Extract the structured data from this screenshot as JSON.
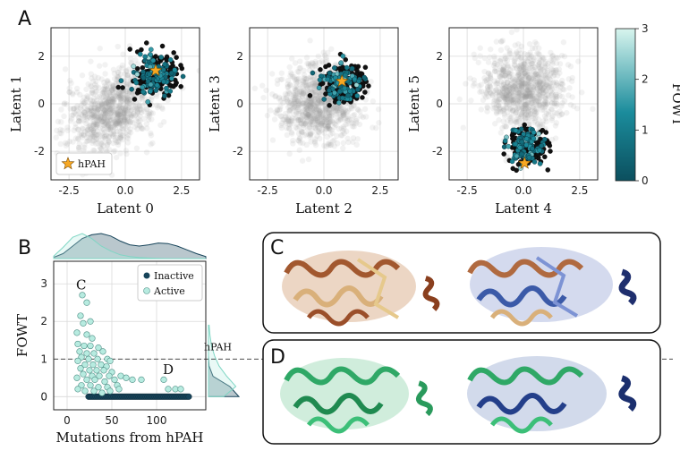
{
  "panel_labels": {
    "A": "A",
    "B": "B",
    "C": "C",
    "D": "D"
  },
  "colors": {
    "cmap_low": "#0b4f5e",
    "cmap_mid": "#1b8c9c",
    "cmap_high": "#cff2ea",
    "background_points": "#9a9a9a",
    "inactive": "#17445a",
    "active": "#b7ebe0",
    "star": "#f7a823",
    "structure_c_left": "#b06a40",
    "structure_c_right": "#3b5aa8",
    "structure_d_left": "#2fa866",
    "structure_d_right": "#243f8a"
  },
  "chart_data": [
    {
      "type": "scatter",
      "id": "latent-0-1",
      "xlabel": "Latent 0",
      "ylabel": "Latent 1",
      "xlim": [
        -3.3,
        3.3
      ],
      "ylim": [
        -3.2,
        3.2
      ],
      "xticks": [
        "-2.5",
        "0.0",
        "2.5"
      ],
      "xtick_values": [
        -2.5,
        0,
        2.5
      ],
      "yticks": [
        "-2",
        "0",
        "2"
      ],
      "ytick_values": [
        -2,
        0,
        2
      ],
      "background_center": [
        -0.6,
        -0.3
      ],
      "background_spread": [
        1.0,
        0.85
      ],
      "cluster_center": [
        1.3,
        1.2
      ],
      "cluster_spread": [
        0.55,
        0.45
      ],
      "star": [
        1.35,
        1.4
      ],
      "legend": "hPAH"
    },
    {
      "type": "scatter",
      "id": "latent-2-3",
      "xlabel": "Latent 2",
      "ylabel": "Latent 3",
      "xlim": [
        -3.3,
        3.3
      ],
      "ylim": [
        -3.2,
        3.2
      ],
      "xticks": [
        "-2.5",
        "0.0",
        "2.5"
      ],
      "xtick_values": [
        -2.5,
        0,
        2.5
      ],
      "yticks": [
        "-2",
        "0",
        "2"
      ],
      "ytick_values": [
        -2,
        0,
        2
      ],
      "background_center": [
        -0.2,
        0.0
      ],
      "background_spread": [
        0.9,
        0.8
      ],
      "cluster_center": [
        0.75,
        0.85
      ],
      "cluster_spread": [
        0.5,
        0.45
      ],
      "star": [
        0.8,
        0.95
      ]
    },
    {
      "type": "scatter",
      "id": "latent-4-5",
      "xlabel": "Latent 4",
      "ylabel": "Latent 5",
      "xlim": [
        -3.3,
        3.3
      ],
      "ylim": [
        -3.2,
        3.2
      ],
      "xticks": [
        "-2.5",
        "0.0",
        "2.5"
      ],
      "xtick_values": [
        -2.5,
        0,
        2.5
      ],
      "yticks": [
        "-2",
        "0",
        "2"
      ],
      "ytick_values": [
        -2,
        0,
        2
      ],
      "background_center": [
        0.0,
        0.6
      ],
      "background_spread": [
        0.9,
        0.85
      ],
      "cluster_center": [
        0.15,
        -1.8
      ],
      "cluster_spread": [
        0.45,
        0.4
      ],
      "star": [
        0.05,
        -2.5
      ]
    },
    {
      "type": "colorbar",
      "id": "fowt-colorbar",
      "label": "FOWT",
      "range": [
        0,
        3
      ],
      "ticks": [
        "0",
        "1",
        "2",
        "3"
      ],
      "tick_values": [
        0,
        1,
        2,
        3
      ]
    },
    {
      "type": "scatter",
      "id": "fowt-vs-mutations",
      "xlabel": "Mutations from hPAH",
      "ylabel": "FOWT",
      "xlim": [
        -15,
        155
      ],
      "ylim": [
        -0.35,
        3.6
      ],
      "xticks": [
        "0",
        "50",
        "100"
      ],
      "xtick_values": [
        0,
        50,
        100
      ],
      "yticks": [
        "0",
        "1",
        "2",
        "3"
      ],
      "ytick_values": [
        0,
        1,
        2,
        3
      ],
      "hline": {
        "y": 1.0,
        "label": "hPAH"
      },
      "legend": [
        "Inactive",
        "Active"
      ],
      "annotations": [
        {
          "text": "C",
          "x": 10,
          "y": 2.85
        },
        {
          "text": "D",
          "x": 107,
          "y": 0.6
        }
      ],
      "inactive_x": [
        24,
        26,
        28,
        30,
        32,
        34,
        36,
        38,
        40,
        42,
        44,
        46,
        48,
        50,
        52,
        54,
        56,
        58,
        60,
        62,
        64,
        66,
        68,
        70,
        72,
        74,
        76,
        78,
        80,
        82,
        84,
        86,
        88,
        90,
        92,
        94,
        96,
        98,
        100,
        102,
        104,
        106,
        108,
        110,
        112,
        114,
        116,
        118,
        120,
        122,
        124,
        126,
        128,
        130,
        132,
        134,
        136
      ],
      "active_points": [
        [
          17,
          2.7
        ],
        [
          22,
          2.5
        ],
        [
          15,
          2.15
        ],
        [
          18,
          1.95
        ],
        [
          26,
          2.0
        ],
        [
          11,
          1.7
        ],
        [
          22,
          1.65
        ],
        [
          28,
          1.55
        ],
        [
          12,
          1.4
        ],
        [
          19,
          1.35
        ],
        [
          26,
          1.35
        ],
        [
          35,
          1.3
        ],
        [
          14,
          1.2
        ],
        [
          22,
          1.15
        ],
        [
          30,
          1.15
        ],
        [
          40,
          1.2
        ],
        [
          16,
          1.05
        ],
        [
          24,
          1.0
        ],
        [
          34,
          1.0
        ],
        [
          45,
          1.0
        ],
        [
          48,
          0.95
        ],
        [
          12,
          0.95
        ],
        [
          20,
          0.85
        ],
        [
          29,
          0.85
        ],
        [
          38,
          0.85
        ],
        [
          44,
          0.8
        ],
        [
          15,
          0.75
        ],
        [
          25,
          0.7
        ],
        [
          33,
          0.7
        ],
        [
          41,
          0.7
        ],
        [
          50,
          0.65
        ],
        [
          18,
          0.6
        ],
        [
          28,
          0.55
        ],
        [
          36,
          0.55
        ],
        [
          47,
          0.55
        ],
        [
          60,
          0.55
        ],
        [
          11,
          0.5
        ],
        [
          22,
          0.45
        ],
        [
          31,
          0.45
        ],
        [
          42,
          0.4
        ],
        [
          53,
          0.45
        ],
        [
          66,
          0.5
        ],
        [
          16,
          0.3
        ],
        [
          26,
          0.3
        ],
        [
          35,
          0.25
        ],
        [
          45,
          0.25
        ],
        [
          56,
          0.3
        ],
        [
          73,
          0.45
        ],
        [
          12,
          0.2
        ],
        [
          20,
          0.15
        ],
        [
          30,
          0.15
        ],
        [
          39,
          0.1
        ],
        [
          48,
          0.15
        ],
        [
          58,
          0.2
        ],
        [
          83,
          0.45
        ],
        [
          108,
          0.45
        ],
        [
          113,
          0.2
        ],
        [
          121,
          0.2
        ],
        [
          127,
          0.2
        ]
      ],
      "marginal_top": {
        "inactive": [
          0.05,
          0.2,
          0.5,
          0.8,
          0.95,
          1.0,
          0.9,
          0.7,
          0.55,
          0.5,
          0.55,
          0.62,
          0.6,
          0.5,
          0.35,
          0.2,
          0.08
        ],
        "active": [
          0.1,
          0.45,
          0.85,
          1.0,
          0.8,
          0.5,
          0.3,
          0.15,
          0.08,
          0.04,
          0.02,
          0.01,
          0.0,
          0.0,
          0.0,
          0.0,
          0.0
        ]
      },
      "marginal_right": {
        "inactive": [
          1.0,
          0.7,
          0.15,
          0.02,
          0.0,
          0.0,
          0.0,
          0.0
        ],
        "active": [
          0.5,
          0.9,
          0.6,
          0.35,
          0.2,
          0.1,
          0.05,
          0.02
        ]
      }
    }
  ]
}
